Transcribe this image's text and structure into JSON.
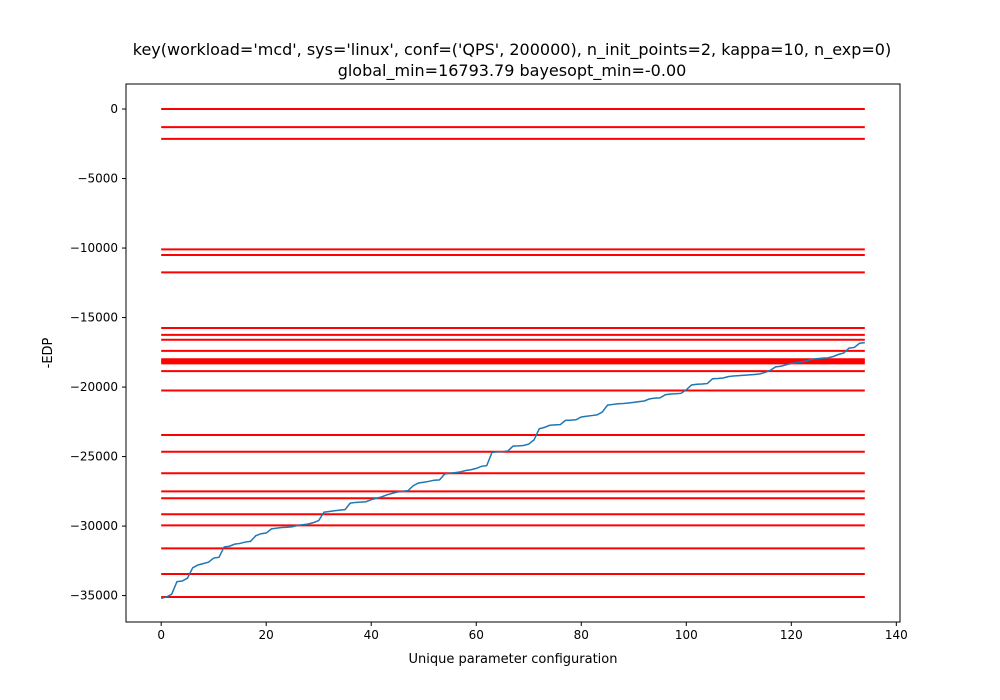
{
  "chart_data": {
    "type": "line",
    "title_line1": "key(workload='mcd', sys='linux', conf=('QPS', 200000), n_init_points=2, kappa=10, n_exp=0)",
    "title_line2": "global_min=16793.79 bayesopt_min=-0.00",
    "xlabel": "Unique parameter configuration",
    "ylabel": "-EDP",
    "xlim": [
      -6.7,
      140.7
    ],
    "ylim": [
      -36900,
      1800
    ],
    "xticks": [
      0,
      20,
      40,
      60,
      80,
      100,
      120,
      140
    ],
    "yticks": [
      0,
      -5000,
      -10000,
      -15000,
      -20000,
      -25000,
      -30000,
      -35000
    ],
    "ytick_labels": [
      "0",
      "−5000",
      "−10000",
      "−15000",
      "−20000",
      "−25000",
      "−30000",
      "−35000"
    ],
    "hline_xrange": [
      0,
      134
    ],
    "hlines_color": "#ff0000",
    "series_color": "#1f77b4",
    "hlines": [
      -0.0,
      -1300,
      -2150,
      -10100,
      -10500,
      -11750,
      -15750,
      -16250,
      -16600,
      -17400,
      -18000,
      -18100,
      -18200,
      -18300,
      -18850,
      -20250,
      -23450,
      -24650,
      -26200,
      -27500,
      -28000,
      -29150,
      -29950,
      -31600,
      -33450,
      -35100
    ],
    "series": [
      {
        "x": [
          0,
          1,
          2,
          3,
          4,
          5,
          6,
          7,
          8,
          9,
          10,
          11,
          12,
          13,
          14,
          15,
          16,
          17,
          18,
          19,
          20,
          21,
          22,
          23,
          24,
          25,
          26,
          27,
          28,
          29,
          30,
          31,
          32,
          33,
          34,
          35,
          36,
          37,
          38,
          39,
          40,
          41,
          42,
          43,
          44,
          45,
          46,
          47,
          48,
          49,
          50,
          51,
          52,
          53,
          54,
          55,
          56,
          57,
          58,
          59,
          60,
          61,
          62,
          63,
          64,
          65,
          66,
          67,
          68,
          69,
          70,
          71,
          72,
          73,
          74,
          75,
          76,
          77,
          78,
          79,
          80,
          81,
          82,
          83,
          84,
          85,
          86,
          87,
          88,
          89,
          90,
          91,
          92,
          93,
          94,
          95,
          96,
          97,
          98,
          99,
          100,
          101,
          102,
          103,
          104,
          105,
          106,
          107,
          108,
          109,
          110,
          111,
          112,
          113,
          114,
          115,
          116,
          117,
          118,
          119,
          120,
          121,
          122,
          123,
          124,
          125,
          126,
          127,
          128,
          129,
          130,
          131,
          132,
          133,
          134
        ],
        "values": [
          -35200,
          -35100,
          -34900,
          -34000,
          -33950,
          -33750,
          -33000,
          -32800,
          -32700,
          -32600,
          -32300,
          -32250,
          -31500,
          -31450,
          -31300,
          -31250,
          -31150,
          -31100,
          -30700,
          -30550,
          -30500,
          -30200,
          -30150,
          -30100,
          -30080,
          -30050,
          -29950,
          -29900,
          -29850,
          -29750,
          -29600,
          -29000,
          -28950,
          -28900,
          -28850,
          -28820,
          -28350,
          -28300,
          -28280,
          -28250,
          -28100,
          -28000,
          -27900,
          -27750,
          -27650,
          -27550,
          -27500,
          -27450,
          -27100,
          -26900,
          -26850,
          -26780,
          -26700,
          -26680,
          -26250,
          -26200,
          -26150,
          -26100,
          -26000,
          -25950,
          -25850,
          -25700,
          -25650,
          -24700,
          -24650,
          -24650,
          -24600,
          -24250,
          -24230,
          -24200,
          -24100,
          -23800,
          -23000,
          -22900,
          -22750,
          -22720,
          -22700,
          -22400,
          -22380,
          -22350,
          -22150,
          -22100,
          -22050,
          -22000,
          -21800,
          -21300,
          -21250,
          -21200,
          -21180,
          -21150,
          -21100,
          -21050,
          -21000,
          -20850,
          -20800,
          -20780,
          -20550,
          -20500,
          -20480,
          -20450,
          -20200,
          -19850,
          -19800,
          -19780,
          -19750,
          -19400,
          -19380,
          -19350,
          -19250,
          -19200,
          -19180,
          -19150,
          -19120,
          -19100,
          -19050,
          -18950,
          -18800,
          -18550,
          -18500,
          -18400,
          -18300,
          -18250,
          -18200,
          -18100,
          -18000,
          -17950,
          -17920,
          -17900,
          -17800,
          -17650,
          -17550,
          -17200,
          -17150,
          -16850,
          -16800
        ]
      }
    ]
  }
}
